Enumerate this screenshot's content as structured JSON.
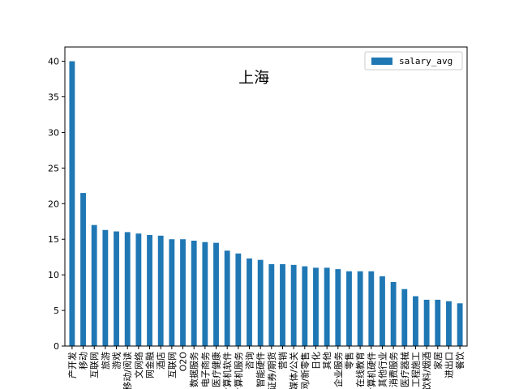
{
  "colors": {
    "bar": "#1f77b4",
    "axis": "#000000",
    "legend_border": "#cccccc"
  },
  "chart_data": {
    "type": "bar",
    "title": "上海",
    "xlabel": "",
    "ylabel": "",
    "ylim": [
      0,
      42
    ],
    "yticks": [
      0,
      5,
      10,
      15,
      20,
      25,
      30,
      35,
      40
    ],
    "grid": false,
    "legend_position": "top-right",
    "categories": [
      "产开发",
      "移动",
      "互联网",
      "旅游",
      "游戏",
      "移动/阅读",
      "文网络",
      "网金融",
      "酒店",
      "互联网",
      "O2O",
      "数据服务",
      "电子商务",
      "医疗健康",
      "计算机软件",
      "计算机服务",
      "咨询",
      "智能硬件",
      "证券/期货",
      "营销",
      "媒体/公关",
      "互联网/新零售",
      "日化",
      "其他",
      "企业服务",
      "零售",
      "在线教育",
      "计算机硬件",
      "其他行业",
      "消费服务",
      "医疗器械",
      "工程施工",
      "饮料/烟酒",
      "家居",
      "进出口",
      "餐饮"
    ],
    "series": [
      {
        "name": "salary_avg",
        "values": [
          40,
          21.5,
          17,
          16.3,
          16.1,
          16.0,
          15.8,
          15.6,
          15.5,
          15.0,
          15.0,
          14.8,
          14.6,
          14.5,
          13.4,
          13.0,
          12.3,
          12.1,
          11.5,
          11.5,
          11.4,
          11.2,
          11.0,
          11.0,
          10.8,
          10.5,
          10.5,
          10.5,
          9.8,
          9.0,
          8.0,
          7.0,
          6.5,
          6.5,
          6.3,
          6.0
        ]
      }
    ]
  }
}
